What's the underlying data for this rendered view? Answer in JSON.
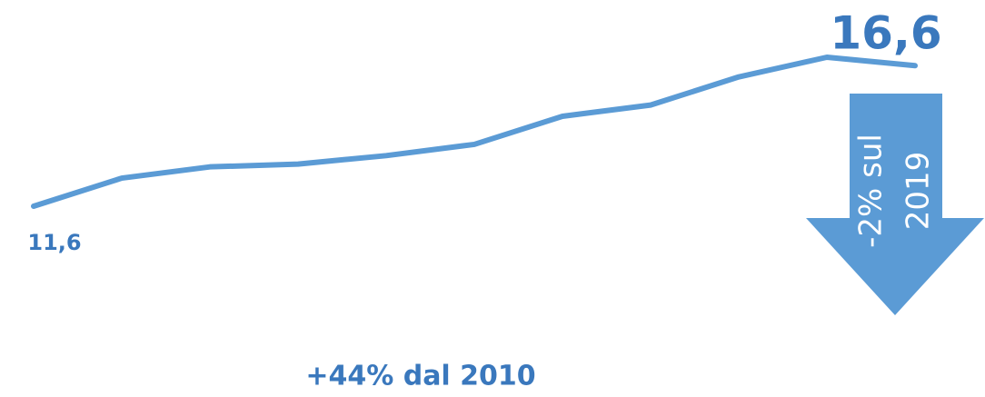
{
  "chart_data": {
    "type": "line",
    "series": [
      {
        "color": "#5b9bd5",
        "values": [
          11.6,
          12.6,
          13.0,
          13.1,
          13.4,
          13.8,
          14.8,
          15.2,
          16.2,
          16.9,
          16.6
        ],
        "value_labels": [
          "11,6",
          null,
          null,
          null,
          null,
          null,
          null,
          null,
          null,
          null,
          "16,6"
        ]
      }
    ],
    "annotations": [
      "+44% dal 2010",
      "-2% sul",
      "2019"
    ]
  }
}
